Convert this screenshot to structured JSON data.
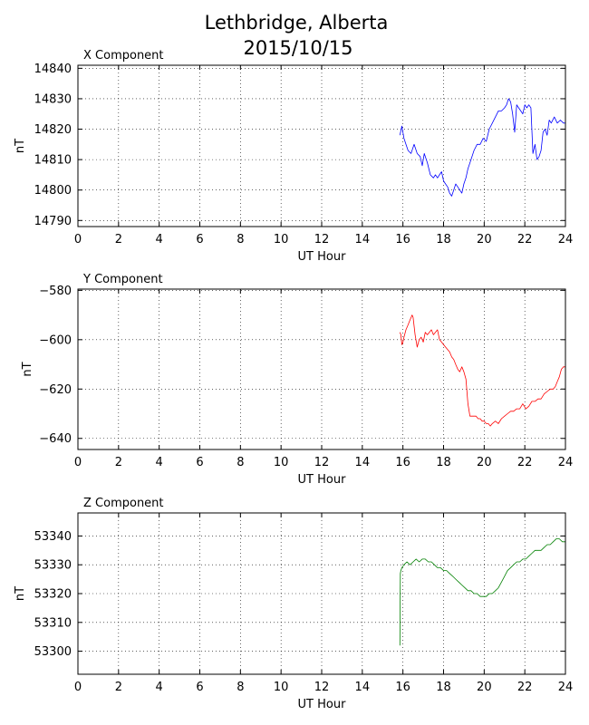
{
  "figure": {
    "title_line1": "Lethbridge, Alberta",
    "title_line2": "2015/10/15"
  },
  "chart_data": [
    {
      "type": "line",
      "title": "X Component",
      "xlabel": "UT Hour",
      "ylabel": "nT",
      "xlim": [
        0,
        24
      ],
      "ylim": [
        14788,
        14841
      ],
      "xticks": [
        0,
        2,
        4,
        6,
        8,
        10,
        12,
        14,
        16,
        18,
        20,
        22,
        24
      ],
      "yticks": [
        14790,
        14800,
        14810,
        14820,
        14830,
        14840
      ],
      "grid": true,
      "series": [
        {
          "color": "#0000ff",
          "x": [
            15.85,
            15.95,
            16.05,
            16.15,
            16.25,
            16.4,
            16.55,
            16.7,
            16.85,
            16.95,
            17.05,
            17.2,
            17.35,
            17.5,
            17.6,
            17.7,
            17.8,
            17.9,
            18.0,
            18.1,
            18.2,
            18.3,
            18.4,
            18.5,
            18.6,
            18.7,
            18.8,
            18.9,
            19.0,
            19.1,
            19.2,
            19.35,
            19.5,
            19.65,
            19.8,
            19.95,
            20.1,
            20.25,
            20.4,
            20.55,
            20.7,
            20.85,
            21.0,
            21.1,
            21.2,
            21.3,
            21.4,
            21.5,
            21.6,
            21.7,
            21.8,
            21.9,
            22.0,
            22.1,
            22.2,
            22.3,
            22.4,
            22.5,
            22.6,
            22.7,
            22.8,
            22.9,
            23.0,
            23.1,
            23.2,
            23.3,
            23.45,
            23.6,
            23.75,
            23.9,
            24.0
          ],
          "y": [
            14818,
            14821,
            14817,
            14815,
            14813,
            14812,
            14815,
            14812,
            14811,
            14808,
            14812,
            14809,
            14805,
            14804,
            14805,
            14804,
            14805,
            14806,
            14803,
            14802,
            14801,
            14799,
            14798,
            14800,
            14802,
            14801,
            14800,
            14799,
            14802,
            14804,
            14807,
            14810,
            14813,
            14815,
            14815,
            14817,
            14816,
            14820,
            14822,
            14824,
            14826,
            14826,
            14827,
            14828,
            14830,
            14829,
            14825,
            14819,
            14828,
            14827,
            14826,
            14825,
            14828,
            14827,
            14828,
            14827,
            14812,
            14815,
            14810,
            14811,
            14813,
            14819,
            14820,
            14818,
            14823,
            14822,
            14824,
            14822,
            14823,
            14822,
            14822
          ]
        }
      ]
    },
    {
      "type": "line",
      "title": "Y Component",
      "xlabel": "UT Hour",
      "ylabel": "nT",
      "xlim": [
        0,
        24
      ],
      "ylim": [
        -644.5,
        -579.5
      ],
      "xticks": [
        0,
        2,
        4,
        6,
        8,
        10,
        12,
        14,
        16,
        18,
        20,
        22,
        24
      ],
      "yticks": [
        -580,
        -600,
        -620,
        -640
      ],
      "grid": true,
      "series": [
        {
          "color": "#ff0000",
          "x": [
            15.85,
            15.9,
            15.95,
            16.0,
            16.05,
            16.15,
            16.25,
            16.35,
            16.45,
            16.5,
            16.6,
            16.7,
            16.8,
            16.9,
            17.0,
            17.1,
            17.2,
            17.3,
            17.4,
            17.5,
            17.6,
            17.7,
            17.8,
            17.9,
            18.0,
            18.1,
            18.2,
            18.3,
            18.4,
            18.5,
            18.6,
            18.7,
            18.8,
            18.9,
            19.0,
            19.1,
            19.2,
            19.3,
            19.4,
            19.5,
            19.6,
            19.7,
            19.8,
            19.9,
            20.0,
            20.1,
            20.2,
            20.3,
            20.4,
            20.55,
            20.7,
            20.85,
            21.0,
            21.15,
            21.3,
            21.45,
            21.6,
            21.75,
            21.9,
            22.05,
            22.2,
            22.35,
            22.5,
            22.65,
            22.8,
            22.95,
            23.1,
            23.25,
            23.4,
            23.5,
            23.6,
            23.7,
            23.8,
            23.9,
            24.0
          ],
          "y": [
            -597,
            -598,
            -602,
            -601,
            -599,
            -596,
            -594,
            -592,
            -590,
            -591,
            -598,
            -603,
            -600,
            -599,
            -601,
            -597,
            -598,
            -597,
            -596,
            -598,
            -597,
            -596,
            -600,
            -601,
            -602,
            -603,
            -604,
            -605,
            -607,
            -608,
            -610,
            -612,
            -613,
            -611,
            -613,
            -616,
            -626,
            -631,
            -631,
            -631,
            -631,
            -632,
            -632,
            -633,
            -633,
            -634,
            -634,
            -635,
            -634,
            -633,
            -634,
            -632,
            -631,
            -630,
            -629,
            -629,
            -628,
            -628,
            -626,
            -628,
            -627,
            -625,
            -625,
            -624,
            -624,
            -622,
            -621,
            -620,
            -620,
            -619,
            -617,
            -615,
            -612,
            -611,
            -611
          ]
        }
      ]
    },
    {
      "type": "line",
      "title": "Z Component",
      "xlabel": "UT Hour",
      "ylabel": "nT",
      "xlim": [
        0,
        24
      ],
      "ylim": [
        53292,
        53348
      ],
      "xticks": [
        0,
        2,
        4,
        6,
        8,
        10,
        12,
        14,
        16,
        18,
        20,
        22,
        24
      ],
      "yticks": [
        53300,
        53310,
        53320,
        53330,
        53340
      ],
      "grid": true,
      "series": [
        {
          "color": "#008000",
          "x": [
            15.85,
            15.87,
            15.9,
            15.95,
            16.05,
            16.2,
            16.35,
            16.5,
            16.65,
            16.8,
            16.95,
            17.1,
            17.25,
            17.4,
            17.55,
            17.7,
            17.85,
            18.0,
            18.15,
            18.3,
            18.45,
            18.6,
            18.75,
            18.9,
            19.05,
            19.2,
            19.35,
            19.5,
            19.65,
            19.8,
            19.95,
            20.1,
            20.25,
            20.4,
            20.55,
            20.7,
            20.85,
            21.0,
            21.15,
            21.3,
            21.45,
            21.6,
            21.75,
            21.9,
            22.05,
            22.2,
            22.35,
            22.5,
            22.65,
            22.8,
            22.95,
            23.1,
            23.25,
            23.4,
            23.55,
            23.7,
            23.85,
            24.0
          ],
          "y": [
            53302,
            53327,
            53328,
            53329,
            53330,
            53331,
            53330,
            53331,
            53332,
            53331,
            53332,
            53332,
            53331,
            53331,
            53330,
            53329,
            53329,
            53328,
            53328,
            53327,
            53326,
            53325,
            53324,
            53323,
            53322,
            53321,
            53321,
            53320,
            53320,
            53319,
            53319,
            53319,
            53320,
            53320,
            53321,
            53322,
            53324,
            53326,
            53328,
            53329,
            53330,
            53331,
            53331,
            53332,
            53332,
            53333,
            53334,
            53335,
            53335,
            53335,
            53336,
            53337,
            53337,
            53338,
            53339,
            53339,
            53338,
            53338
          ]
        }
      ]
    }
  ]
}
